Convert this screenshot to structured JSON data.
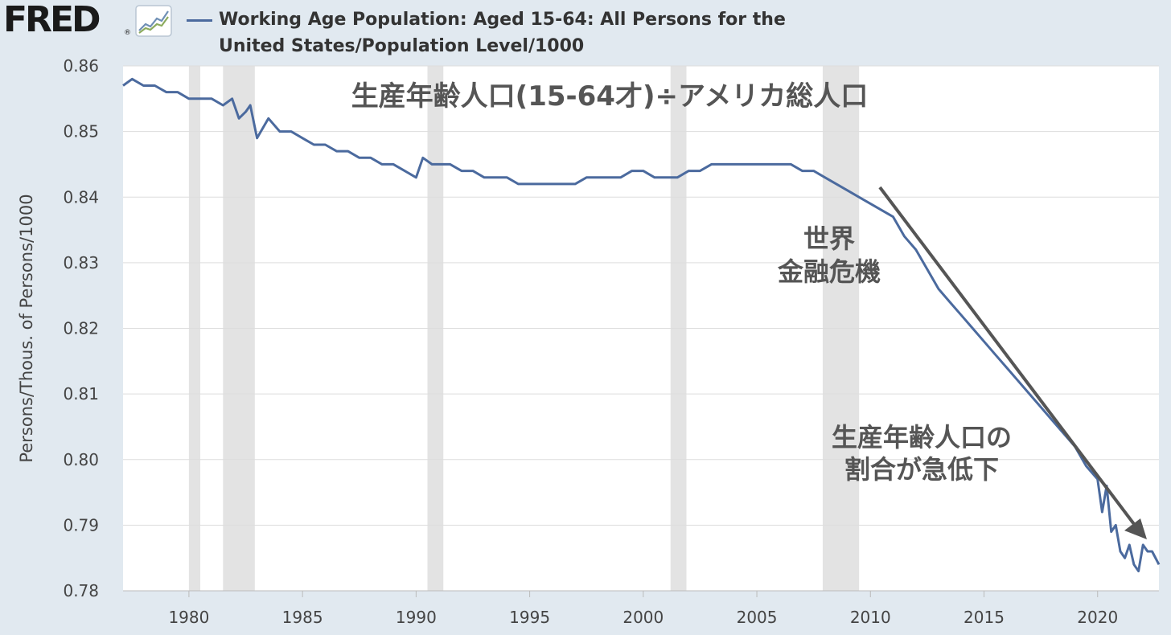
{
  "brand": {
    "logo_text": "FRED",
    "logo_mark": "®",
    "icon": "line-graph-icon"
  },
  "legend": {
    "label": "Working Age Population: Aged 15-64: All Persons for the United States/Population Level/1000"
  },
  "colors": {
    "line": "#4b6a9e",
    "background": "#e1e9f0",
    "plot_bg": "#ffffff",
    "recession": "#e3e3e3",
    "arrow": "#555555"
  },
  "chart_data": {
    "type": "line",
    "title": "",
    "xlabel": "",
    "ylabel": "Persons/Thous. of Persons/1000",
    "xlim": [
      1977.1,
      2022.7
    ],
    "ylim": [
      0.78,
      0.86
    ],
    "grid": true,
    "x_ticks": [
      "1980",
      "1985",
      "1990",
      "1995",
      "2000",
      "2005",
      "2010",
      "2015",
      "2020"
    ],
    "y_ticks": [
      "0.86",
      "0.85",
      "0.84",
      "0.83",
      "0.82",
      "0.81",
      "0.80",
      "0.79",
      "0.78"
    ],
    "recessions": [
      [
        1980.0,
        1980.5
      ],
      [
        1981.5,
        1982.9
      ],
      [
        1990.5,
        1991.2
      ],
      [
        2001.2,
        2001.9
      ],
      [
        2007.9,
        2009.5
      ]
    ],
    "series": [
      {
        "name": "Working Age Population: Aged 15-64: All Persons for the United States/Population Level/1000",
        "x": [
          1977.1,
          1977.5,
          1978.0,
          1978.5,
          1979.0,
          1979.5,
          1980.0,
          1980.5,
          1981.0,
          1981.5,
          1981.9,
          1982.2,
          1982.5,
          1982.7,
          1983.0,
          1983.5,
          1984.0,
          1984.5,
          1985.0,
          1985.5,
          1986.0,
          1986.5,
          1987.0,
          1987.5,
          1988.0,
          1988.5,
          1989.0,
          1989.5,
          1990.0,
          1990.3,
          1990.7,
          1991.0,
          1991.5,
          1992.0,
          1992.5,
          1993.0,
          1993.5,
          1994.0,
          1994.5,
          1995.0,
          1995.5,
          1996.0,
          1996.5,
          1997.0,
          1997.5,
          1998.0,
          1998.5,
          1999.0,
          1999.5,
          2000.0,
          2000.5,
          2001.0,
          2001.5,
          2002.0,
          2002.5,
          2003.0,
          2003.5,
          2004.0,
          2004.5,
          2005.0,
          2005.5,
          2006.0,
          2006.5,
          2007.0,
          2007.5,
          2008.0,
          2008.5,
          2009.0,
          2009.5,
          2010.0,
          2010.5,
          2011.0,
          2011.5,
          2012.0,
          2012.5,
          2013.0,
          2013.5,
          2014.0,
          2014.5,
          2015.0,
          2015.5,
          2016.0,
          2016.5,
          2017.0,
          2017.5,
          2018.0,
          2018.5,
          2019.0,
          2019.5,
          2020.0,
          2020.2,
          2020.4,
          2020.6,
          2020.8,
          2021.0,
          2021.2,
          2021.4,
          2021.6,
          2021.8,
          2022.0,
          2022.2,
          2022.4,
          2022.7
        ],
        "values": [
          0.857,
          0.858,
          0.857,
          0.857,
          0.856,
          0.856,
          0.855,
          0.855,
          0.855,
          0.854,
          0.855,
          0.852,
          0.853,
          0.854,
          0.849,
          0.852,
          0.85,
          0.85,
          0.849,
          0.848,
          0.848,
          0.847,
          0.847,
          0.846,
          0.846,
          0.845,
          0.845,
          0.844,
          0.843,
          0.846,
          0.845,
          0.845,
          0.845,
          0.844,
          0.844,
          0.843,
          0.843,
          0.843,
          0.842,
          0.842,
          0.842,
          0.842,
          0.842,
          0.842,
          0.843,
          0.843,
          0.843,
          0.843,
          0.844,
          0.844,
          0.843,
          0.843,
          0.843,
          0.844,
          0.844,
          0.845,
          0.845,
          0.845,
          0.845,
          0.845,
          0.845,
          0.845,
          0.845,
          0.844,
          0.844,
          0.843,
          0.842,
          0.841,
          0.84,
          0.839,
          0.838,
          0.837,
          0.834,
          0.832,
          0.829,
          0.826,
          0.824,
          0.822,
          0.82,
          0.818,
          0.816,
          0.814,
          0.812,
          0.81,
          0.808,
          0.806,
          0.804,
          0.802,
          0.799,
          0.797,
          0.792,
          0.796,
          0.789,
          0.79,
          0.786,
          0.785,
          0.787,
          0.784,
          0.783,
          0.787,
          0.786,
          0.786,
          0.784
        ]
      }
    ],
    "annotations": [
      {
        "id": "title_note",
        "text": "生産年齢人口(15-64才)÷アメリカ総人口"
      },
      {
        "id": "crisis_line1",
        "text": "世界"
      },
      {
        "id": "crisis_line2",
        "text": "金融危機"
      },
      {
        "id": "decline_line1",
        "text": "生産年齢人口の"
      },
      {
        "id": "decline_line2",
        "text": "割合が急低下"
      }
    ]
  }
}
